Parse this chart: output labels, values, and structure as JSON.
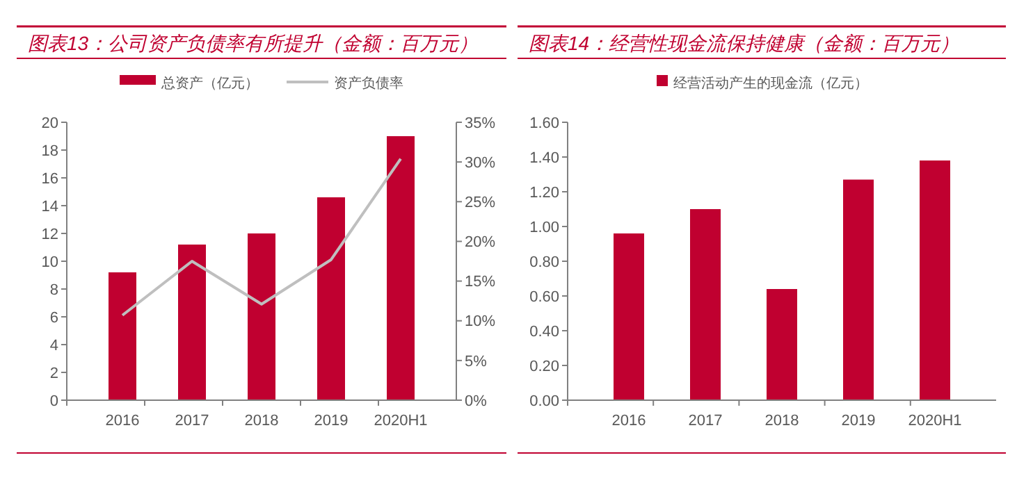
{
  "chart_data": [
    {
      "type": "bar",
      "title": "图表13：公司资产负债率有所提升（金额：百万元）",
      "categories": [
        "2016",
        "2017",
        "2018",
        "2019",
        "2020H1"
      ],
      "series": [
        {
          "name": "总资产（亿元）",
          "color": "#c00030",
          "values": [
            9.2,
            11.2,
            12.0,
            14.6,
            19.0
          ]
        },
        {
          "name": "资产负债率",
          "type": "line",
          "axis": "y2",
          "color": "#bfbfbf",
          "values": [
            10.7,
            17.5,
            12.1,
            17.7,
            30.4
          ]
        }
      ],
      "ylim": [
        0,
        20
      ],
      "yticks": [
        0,
        2,
        4,
        6,
        8,
        10,
        12,
        14,
        16,
        18,
        20
      ],
      "y2lim": [
        0,
        35
      ],
      "y2ticks": [
        {
          "value": 0,
          "label": "0%"
        },
        {
          "value": 5,
          "label": "5%"
        },
        {
          "value": 10,
          "label": "10%"
        },
        {
          "value": 15,
          "label": "15%"
        },
        {
          "value": 20,
          "label": "20%"
        },
        {
          "value": 25,
          "label": "25%"
        },
        {
          "value": 30,
          "label": "30%"
        },
        {
          "value": 35,
          "label": "35%"
        }
      ],
      "legend": "top",
      "grid": false
    },
    {
      "type": "bar",
      "title": "图表14：经营性现金流保持健康（金额：百万元）",
      "categories": [
        "2016",
        "2017",
        "2018",
        "2019",
        "2020H1"
      ],
      "series": [
        {
          "name": "经营活动产生的现金流（亿元）",
          "color": "#c00030",
          "values": [
            0.96,
            1.1,
            0.64,
            1.27,
            1.38
          ]
        }
      ],
      "ylim": [
        0,
        1.6
      ],
      "yticks": [
        {
          "value": 0,
          "label": "0.00"
        },
        {
          "value": 0.2,
          "label": "0.20"
        },
        {
          "value": 0.4,
          "label": "0.40"
        },
        {
          "value": 0.6,
          "label": "0.60"
        },
        {
          "value": 0.8,
          "label": "0.80"
        },
        {
          "value": 1.0,
          "label": "1.00"
        },
        {
          "value": 1.2,
          "label": "1.20"
        },
        {
          "value": 1.4,
          "label": "1.40"
        },
        {
          "value": 1.6,
          "label": "1.60"
        }
      ],
      "legend": "top",
      "grid": false
    }
  ]
}
